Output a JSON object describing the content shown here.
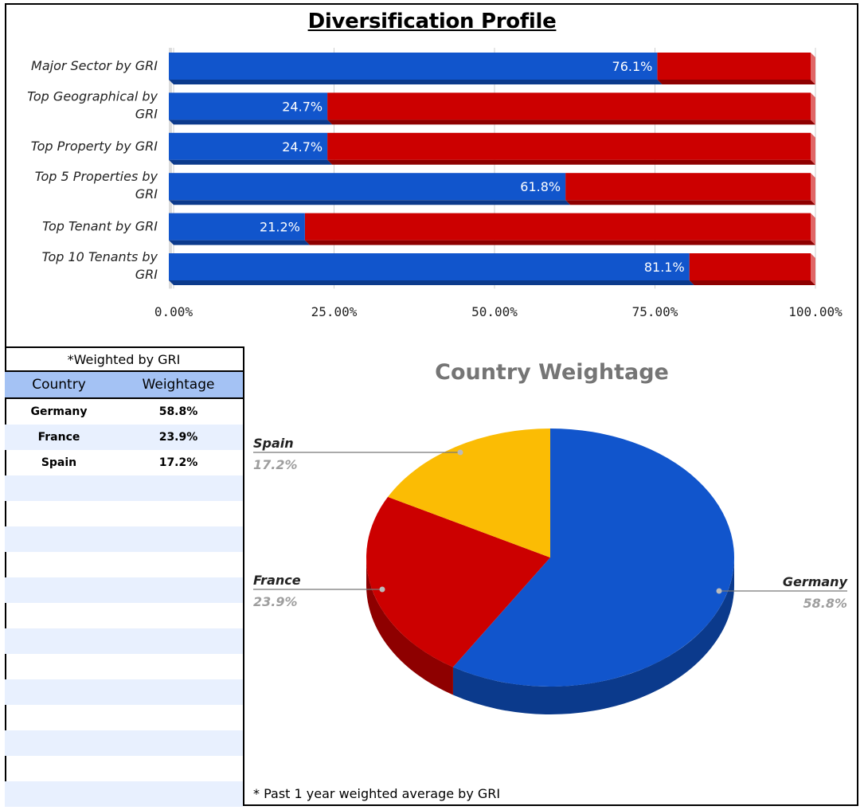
{
  "chart_data": [
    {
      "type": "bar",
      "orientation": "horizontal",
      "stacked": true,
      "title": "Diversification Profile",
      "categories": [
        "Major Sector by GRI",
        "Top Geographical by GRI",
        "Top Property by GRI",
        "Top 5 Properties by GRI",
        "Top Tenant by GRI",
        "Top 10 Tenants by GRI"
      ],
      "category_lines": [
        [
          "Major Sector by GRI"
        ],
        [
          "Top Geographical by",
          "GRI"
        ],
        [
          "Top Property by GRI"
        ],
        [
          "Top 5 Properties by",
          "GRI"
        ],
        [
          "Top Tenant by GRI"
        ],
        [
          "Top 10 Tenants by",
          "GRI"
        ]
      ],
      "values": [
        76.1,
        24.7,
        24.7,
        61.8,
        21.2,
        81.1
      ],
      "data_labels": [
        "76.1%",
        "24.7%",
        "24.7%",
        "61.8%",
        "21.2%",
        "81.1%"
      ],
      "remainder_to": 100,
      "xlim": [
        0,
        100
      ],
      "x_ticks": [
        "0.00%",
        "25.00%",
        "50.00%",
        "75.00%",
        "100.00%"
      ],
      "colors": {
        "primary": "#1155cc",
        "primary_dark": "#0b3a8c",
        "remainder": "#cc0000",
        "remainder_dark": "#8e0000"
      },
      "grid": true,
      "legend": "none"
    },
    {
      "type": "pie",
      "style": "3d",
      "title": "Country Weightage",
      "slices": [
        {
          "label": "Germany",
          "value": 58.8,
          "display": "58.8%",
          "color": "#1155cc",
          "dark": "#0b3a8c"
        },
        {
          "label": "France",
          "value": 23.9,
          "display": "23.9%",
          "color": "#cc0000",
          "dark": "#8e0000"
        },
        {
          "label": "Spain",
          "value": 17.2,
          "display": "17.2%",
          "color": "#fbbc04",
          "dark": "#b38600"
        }
      ]
    }
  ],
  "table": {
    "caption": "*Weighted by GRI",
    "headers": {
      "country": "Country",
      "weightage": "Weightage"
    },
    "rows": [
      {
        "country": "Germany",
        "weightage": "58.8%"
      },
      {
        "country": "France",
        "weightage": "23.9%"
      },
      {
        "country": "Spain",
        "weightage": "17.2%"
      },
      {
        "country": "",
        "weightage": ""
      },
      {
        "country": "",
        "weightage": ""
      },
      {
        "country": "",
        "weightage": ""
      },
      {
        "country": "",
        "weightage": ""
      },
      {
        "country": "",
        "weightage": ""
      },
      {
        "country": "",
        "weightage": ""
      },
      {
        "country": "",
        "weightage": ""
      },
      {
        "country": "",
        "weightage": ""
      },
      {
        "country": "",
        "weightage": ""
      },
      {
        "country": "",
        "weightage": ""
      },
      {
        "country": "",
        "weightage": ""
      },
      {
        "country": "",
        "weightage": ""
      },
      {
        "country": "",
        "weightage": ""
      }
    ],
    "header_color": "#a4c2f4",
    "stripe_color": "#e8f0fe"
  },
  "footnote": "* Past 1 year weighted average by GRI"
}
